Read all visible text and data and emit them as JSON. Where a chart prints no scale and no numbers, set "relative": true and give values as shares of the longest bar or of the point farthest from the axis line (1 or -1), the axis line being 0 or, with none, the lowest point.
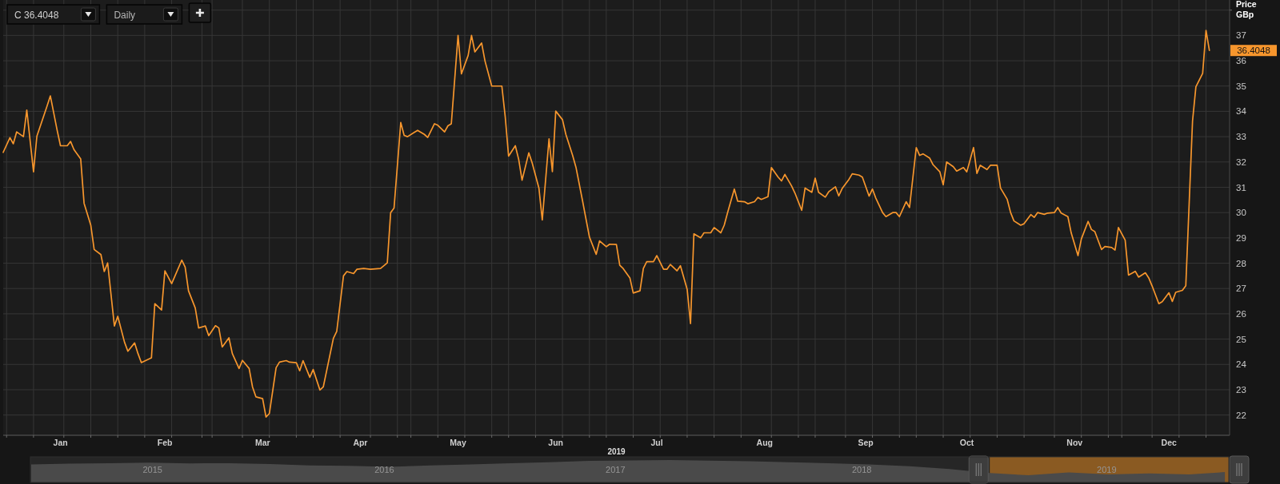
{
  "chart_data": [
    {
      "type": "line",
      "xlabel": "2019",
      "ylabel": "Price GBp",
      "annotations": [
        "36.4048",
        "C 36.4048",
        "Daily"
      ],
      "color": "#f7962d",
      "x": [
        "2019-01-01",
        "2019-01-03",
        "2019-01-04",
        "2019-01-05",
        "2019-01-07",
        "2019-01-08",
        "2019-01-10",
        "2019-01-11",
        "2019-01-14",
        "2019-01-15",
        "2019-01-17",
        "2019-01-18",
        "2019-01-20",
        "2019-01-21",
        "2019-01-22",
        "2019-01-24",
        "2019-01-25",
        "2019-01-27",
        "2019-01-28",
        "2019-01-30",
        "2019-01-31",
        "2019-02-01",
        "2019-02-03",
        "2019-02-04",
        "2019-02-06",
        "2019-02-07",
        "2019-02-09",
        "2019-02-10",
        "2019-02-11",
        "2019-02-14",
        "2019-02-15",
        "2019-02-17",
        "2019-02-18",
        "2019-02-20",
        "2019-02-21",
        "2019-02-23",
        "2019-02-24",
        "2019-02-25",
        "2019-02-27",
        "2019-02-28",
        "2019-03-02",
        "2019-03-03",
        "2019-03-05",
        "2019-03-06",
        "2019-03-07",
        "2019-03-09",
        "2019-03-10",
        "2019-03-12",
        "2019-03-13",
        "2019-03-15",
        "2019-03-16",
        "2019-03-17",
        "2019-03-19",
        "2019-03-20",
        "2019-03-21",
        "2019-03-23",
        "2019-03-24",
        "2019-03-26",
        "2019-03-27",
        "2019-03-29",
        "2019-03-30",
        "2019-03-31",
        "2019-04-02",
        "2019-04-03",
        "2019-04-05",
        "2019-04-06",
        "2019-04-09",
        "2019-04-10",
        "2019-04-12",
        "2019-04-13",
        "2019-04-15",
        "2019-04-16",
        "2019-04-18",
        "2019-04-20",
        "2019-04-23",
        "2019-04-25",
        "2019-04-26",
        "2019-04-27",
        "2019-04-29",
        "2019-04-30",
        "2019-05-01",
        "2019-05-03",
        "2019-05-04",
        "2019-05-06",
        "2019-05-07",
        "2019-05-09",
        "2019-05-10",
        "2019-05-12",
        "2019-05-13",
        "2019-05-14",
        "2019-05-16",
        "2019-05-17",
        "2019-05-19",
        "2019-05-20",
        "2019-05-21",
        "2019-05-23",
        "2019-05-24",
        "2019-05-26",
        "2019-05-27",
        "2019-05-29",
        "2019-05-30",
        "2019-05-31",
        "2019-06-02",
        "2019-06-03",
        "2019-06-04",
        "2019-06-06",
        "2019-06-07",
        "2019-06-09",
        "2019-06-10",
        "2019-06-12",
        "2019-06-13",
        "2019-06-14",
        "2019-06-16",
        "2019-06-17",
        "2019-06-19",
        "2019-06-20",
        "2019-06-22",
        "2019-06-23",
        "2019-06-24",
        "2019-06-26",
        "2019-06-27",
        "2019-06-29",
        "2019-06-30",
        "2019-07-02",
        "2019-07-03",
        "2019-07-04",
        "2019-07-06",
        "2019-07-07",
        "2019-07-09",
        "2019-07-10",
        "2019-07-11",
        "2019-07-13",
        "2019-07-14",
        "2019-07-16",
        "2019-07-17",
        "2019-07-18",
        "2019-07-20",
        "2019-07-21",
        "2019-07-23",
        "2019-07-24",
        "2019-07-25",
        "2019-07-27",
        "2019-07-28",
        "2019-07-30",
        "2019-07-31",
        "2019-08-02",
        "2019-08-03",
        "2019-08-04",
        "2019-08-06",
        "2019-08-07",
        "2019-08-09",
        "2019-08-10",
        "2019-08-12",
        "2019-08-13",
        "2019-08-14",
        "2019-08-16",
        "2019-08-17",
        "2019-08-19",
        "2019-08-20",
        "2019-08-21",
        "2019-08-23",
        "2019-08-24",
        "2019-08-26",
        "2019-08-27",
        "2019-08-29",
        "2019-08-30",
        "2019-08-31",
        "2019-09-02",
        "2019-09-03",
        "2019-09-05",
        "2019-09-06",
        "2019-09-07",
        "2019-09-09",
        "2019-09-10",
        "2019-09-12",
        "2019-09-13",
        "2019-09-15",
        "2019-09-16",
        "2019-09-17",
        "2019-09-19",
        "2019-09-20",
        "2019-09-22",
        "2019-09-23",
        "2019-09-24",
        "2019-09-26",
        "2019-09-27",
        "2019-09-29",
        "2019-09-30",
        "2019-10-01",
        "2019-10-03",
        "2019-10-04",
        "2019-10-06",
        "2019-10-07",
        "2019-10-08",
        "2019-10-10",
        "2019-10-11",
        "2019-10-13",
        "2019-10-14",
        "2019-10-16",
        "2019-10-17",
        "2019-10-18",
        "2019-10-20",
        "2019-10-21",
        "2019-10-23",
        "2019-10-24",
        "2019-10-26",
        "2019-10-27",
        "2019-10-28",
        "2019-10-30",
        "2019-10-31",
        "2019-11-02",
        "2019-11-03",
        "2019-11-04",
        "2019-11-06",
        "2019-11-07",
        "2019-11-09",
        "2019-11-10",
        "2019-11-11",
        "2019-11-13",
        "2019-11-14",
        "2019-11-16",
        "2019-11-17",
        "2019-11-19",
        "2019-11-20",
        "2019-11-21",
        "2019-11-23",
        "2019-11-24",
        "2019-11-26",
        "2019-11-27",
        "2019-11-28",
        "2019-11-30",
        "2019-12-01",
        "2019-12-03",
        "2019-12-04",
        "2019-12-06",
        "2019-12-07",
        "2019-12-08",
        "2019-12-10",
        "2019-12-11",
        "2019-12-13",
        "2019-12-14",
        "2019-12-15",
        "2019-12-17",
        "2019-12-18",
        "2019-12-20",
        "2019-12-21",
        "2019-12-23",
        "2019-12-24",
        "2019-12-25"
      ],
      "values": [
        32.38,
        32.96,
        32.72,
        33.19,
        33.0,
        34.05,
        31.61,
        33.02,
        34.2,
        34.61,
        33.26,
        32.64,
        32.64,
        32.81,
        32.49,
        32.12,
        30.37,
        29.5,
        28.54,
        28.34,
        27.67,
        28.01,
        25.52,
        25.9,
        24.88,
        24.52,
        24.85,
        24.43,
        24.07,
        24.26,
        26.4,
        26.15,
        27.7,
        27.19,
        27.5,
        28.12,
        27.85,
        26.91,
        26.23,
        25.44,
        25.52,
        25.14,
        25.53,
        25.44,
        24.69,
        25.05,
        24.43,
        23.84,
        24.16,
        23.84,
        23.11,
        22.72,
        22.65,
        21.92,
        22.06,
        23.87,
        24.09,
        24.15,
        24.09,
        24.07,
        23.75,
        24.15,
        23.49,
        23.8,
        22.99,
        23.11,
        25.03,
        25.31,
        27.5,
        27.67,
        27.59,
        27.76,
        27.79,
        27.76,
        27.79,
        28.01,
        30.0,
        30.18,
        33.56,
        33.05,
        33.0,
        33.17,
        33.25,
        33.09,
        32.97,
        33.51,
        33.45,
        33.19,
        33.43,
        33.51,
        37.0,
        35.48,
        36.21,
        37.0,
        36.35,
        36.7,
        35.99,
        35.0,
        35.0,
        35.0,
        33.79,
        32.23,
        32.64,
        32.1,
        31.28,
        32.36,
        31.96,
        30.97,
        29.71,
        32.91,
        31.62,
        34.01,
        33.67,
        33.09,
        32.26,
        31.79,
        30.43,
        29.73,
        29.03,
        28.35,
        28.88,
        28.65,
        28.75,
        28.74,
        27.92,
        27.79,
        27.42,
        26.82,
        26.91,
        27.79,
        28.06,
        28.06,
        28.3,
        27.76,
        27.76,
        27.95,
        27.7,
        27.9,
        26.97,
        25.61,
        29.16,
        29.0,
        29.2,
        29.2,
        29.41,
        29.2,
        29.5,
        30.0,
        30.93,
        30.45,
        30.43,
        30.35,
        30.43,
        30.6,
        30.52,
        30.63,
        31.78,
        31.4,
        31.25,
        31.51,
        31.05,
        30.77,
        30.09,
        30.97,
        30.8,
        31.36,
        30.8,
        30.61,
        30.82,
        31.02,
        30.66,
        30.95,
        31.31,
        31.53,
        31.48,
        31.4,
        30.65,
        30.93,
        30.57,
        30.0,
        29.84,
        30.0,
        30.0,
        29.84,
        30.43,
        30.2,
        32.57,
        32.26,
        32.32,
        32.15,
        31.89,
        31.61,
        31.1,
        32.0,
        31.81,
        31.64,
        31.78,
        31.61,
        32.57,
        31.55,
        31.87,
        31.7,
        31.87,
        31.87,
        30.97,
        30.52,
        30.0,
        29.67,
        29.5,
        29.56,
        29.92,
        29.81,
        30.0,
        29.93,
        29.98,
        30.0,
        30.2,
        29.98,
        29.84,
        29.19,
        28.3,
        28.96,
        29.65,
        29.33,
        29.25,
        28.54,
        28.66,
        28.62,
        28.52,
        29.41,
        28.91,
        27.53,
        27.68,
        27.45,
        27.62,
        27.42,
        27.1,
        26.4,
        26.48,
        26.83,
        26.49,
        26.85,
        26.93,
        27.11,
        33.62,
        34.97,
        35.5,
        37.2,
        36.4048
      ],
      "xlim": [
        "2019-01-01",
        "2019-12-31"
      ],
      "ylim": [
        21.2,
        38.4
      ],
      "xticks": [
        {
          "value": "2019-01-02",
          "label": null
        },
        {
          "value": "2019-01-10",
          "label": null
        },
        {
          "value": "2019-01-18",
          "label": "Jan"
        },
        {
          "value": "2019-01-19",
          "label": null
        },
        {
          "value": "2019-01-27",
          "label": null
        },
        {
          "value": "2019-02-04",
          "label": null
        },
        {
          "value": "2019-02-12",
          "label": null
        },
        {
          "value": "2019-02-18",
          "label": "Feb"
        },
        {
          "value": "2019-02-20",
          "label": null
        },
        {
          "value": "2019-03-01",
          "label": null
        },
        {
          "value": "2019-03-04",
          "label": null
        },
        {
          "value": "2019-03-13",
          "label": null
        },
        {
          "value": "2019-03-19",
          "label": "Mar"
        },
        {
          "value": "2019-03-21",
          "label": null
        },
        {
          "value": "2019-03-29",
          "label": null
        },
        {
          "value": "2019-04-03",
          "label": null
        },
        {
          "value": "2019-04-11",
          "label": null
        },
        {
          "value": "2019-04-17",
          "label": "Apr"
        },
        {
          "value": "2019-04-20",
          "label": null
        },
        {
          "value": "2019-04-28",
          "label": null
        },
        {
          "value": "2019-05-02",
          "label": null
        },
        {
          "value": "2019-05-10",
          "label": null
        },
        {
          "value": "2019-05-16",
          "label": "May"
        },
        {
          "value": "2019-05-18",
          "label": null
        },
        {
          "value": "2019-05-26",
          "label": null
        },
        {
          "value": "2019-05-31",
          "label": null
        },
        {
          "value": "2019-06-08",
          "label": null
        },
        {
          "value": "2019-06-14",
          "label": "Jun"
        },
        {
          "value": "2019-06-16",
          "label": null
        },
        {
          "value": "2019-06-24",
          "label": null
        },
        {
          "value": "2019-06-29",
          "label": null
        },
        {
          "value": "2019-07-07",
          "label": null
        },
        {
          "value": "2019-07-14",
          "label": "Jul"
        },
        {
          "value": "2019-07-15",
          "label": null
        },
        {
          "value": "2019-07-23",
          "label": null
        },
        {
          "value": "2019-07-31",
          "label": null
        },
        {
          "value": "2019-08-08",
          "label": null
        },
        {
          "value": "2019-08-15",
          "label": "Aug"
        },
        {
          "value": "2019-08-17",
          "label": null
        },
        {
          "value": "2019-08-25",
          "label": null
        },
        {
          "value": "2019-08-30",
          "label": null
        },
        {
          "value": "2019-09-08",
          "label": null
        },
        {
          "value": "2019-09-14",
          "label": "Sep"
        },
        {
          "value": "2019-09-16",
          "label": null
        },
        {
          "value": "2019-09-24",
          "label": null
        },
        {
          "value": "2019-09-29",
          "label": null
        },
        {
          "value": "2019-10-07",
          "label": null
        },
        {
          "value": "2019-10-14",
          "label": "Oct"
        },
        {
          "value": "2019-10-15",
          "label": null
        },
        {
          "value": "2019-10-23",
          "label": null
        },
        {
          "value": "2019-10-31",
          "label": null
        },
        {
          "value": "2019-11-09",
          "label": null
        },
        {
          "value": "2019-11-15",
          "label": "Nov"
        },
        {
          "value": "2019-11-17",
          "label": null
        },
        {
          "value": "2019-11-25",
          "label": null
        },
        {
          "value": "2019-11-29",
          "label": null
        },
        {
          "value": "2019-12-08",
          "label": null
        },
        {
          "value": "2019-12-13",
          "label": "Dec"
        },
        {
          "value": "2019-12-16",
          "label": null
        },
        {
          "value": "2019-12-24",
          "label": null
        }
      ],
      "yticks": [
        22,
        23,
        24,
        25,
        26,
        27,
        28,
        29,
        30,
        31,
        32,
        33,
        34,
        35,
        36,
        37,
        {
          "value": 38,
          "label": null
        }
      ],
      "grid": true
    },
    {
      "type": "area",
      "relative": true,
      "color": "#4a4a4a",
      "x": [
        "2015-01-02",
        "2015-03-01",
        "2015-05-01",
        "2015-07-01",
        "2015-09-01",
        "2015-11-01",
        "2016-01-01",
        "2016-03-01",
        "2016-05-01",
        "2016-07-01",
        "2016-09-01",
        "2016-11-01",
        "2017-01-01",
        "2017-03-01",
        "2017-05-01",
        "2017-07-01",
        "2017-09-01",
        "2017-11-01",
        "2018-01-01",
        "2018-03-01",
        "2018-05-01",
        "2018-07-01",
        "2018-09-01",
        "2018-11-01",
        "2019-01-01",
        "2019-03-01",
        "2019-05-01",
        "2019-07-01",
        "2019-09-01",
        "2019-11-01",
        "2019-12-25"
      ],
      "values": [
        0.8,
        0.84,
        0.86,
        0.88,
        0.85,
        0.86,
        0.82,
        0.76,
        0.74,
        0.7,
        0.76,
        0.8,
        0.86,
        0.9,
        0.96,
        0.98,
        1,
        0.97,
        0.95,
        0.9,
        0.86,
        0.8,
        0.72,
        0.6,
        0.42,
        0.32,
        0.45,
        0.36,
        0.4,
        0.36,
        0.46
      ],
      "xlim": [
        "2015-01-01",
        "2019-12-31"
      ],
      "xticks": [
        {
          "value": "2015-07-06",
          "label": "2015"
        },
        {
          "value": "2016-06-23",
          "label": "2016"
        },
        {
          "value": "2017-06-10",
          "label": "2017"
        },
        {
          "value": "2018-06-20",
          "label": "2018"
        },
        {
          "value": "2019-06-28",
          "label": "2019"
        }
      ],
      "bands": [
        {
          "axis": "x",
          "from": "2019-01-01",
          "to": "2019-12-31",
          "color": "#8a5a22"
        }
      ]
    }
  ]
}
